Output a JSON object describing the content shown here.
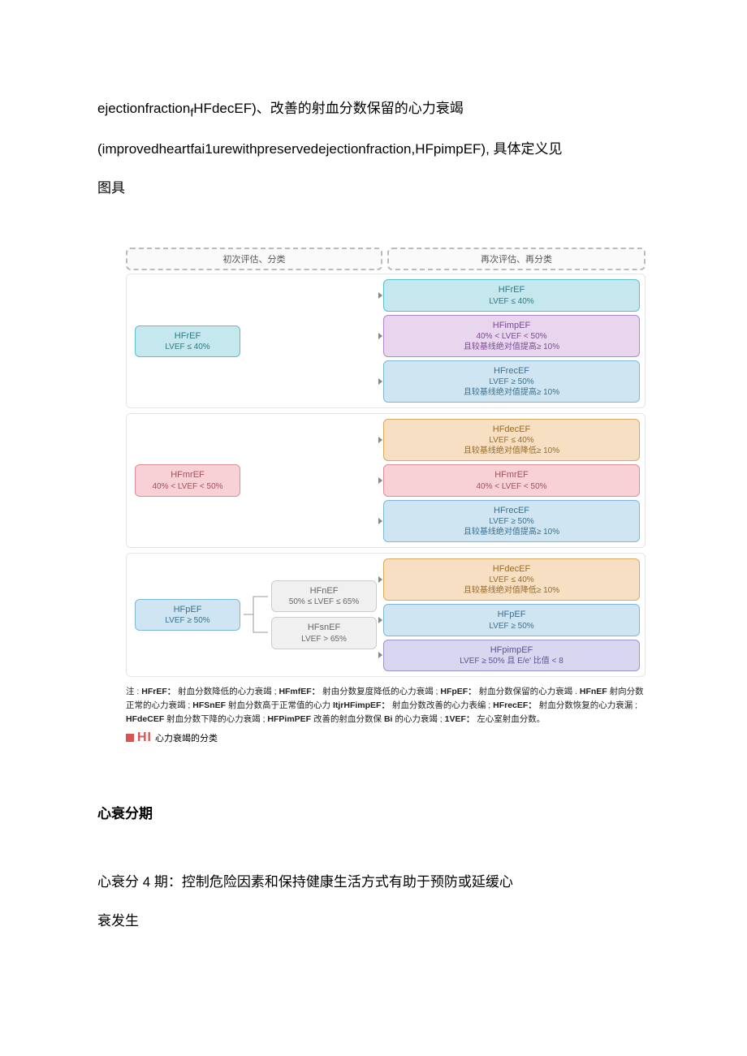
{
  "intro": {
    "line1_a": "ejectionfraction",
    "line1_sub": "f",
    "line1_b": "HFdecEF)、改善的射血分数保留的心力衰竭",
    "line2": "(improvedheartfai1urewithpreservedejectionfraction,HFpimpEF), 具体定义见",
    "line3": "图具"
  },
  "headers": {
    "left": "初次评估、分类",
    "right": "再次评估、再分类"
  },
  "colors": {
    "teal": {
      "bg": "#c4e8ee",
      "border": "#5bbfc9",
      "text": "#2a7a85"
    },
    "purple": {
      "bg": "#e8d6ef",
      "border": "#b884cb",
      "text": "#7b4a91"
    },
    "blue": {
      "bg": "#cfe6f2",
      "border": "#7fb7d6",
      "text": "#3a6f8f"
    },
    "orange": {
      "bg": "#f6dfc2",
      "border": "#d9a95f",
      "text": "#9a6a28"
    },
    "pink": {
      "bg": "#f7d1d6",
      "border": "#df8e97",
      "text": "#a44f5a"
    },
    "grey": {
      "bg": "#f0f0f0",
      "border": "#cccccc",
      "text": "#666666"
    },
    "violet": {
      "bg": "#d9d6ef",
      "border": "#9b94cf",
      "text": "#5a5393"
    }
  },
  "groups": [
    {
      "source": {
        "title": "HFrEF",
        "sub": "LVEF ≤ 40%",
        "color": "teal"
      },
      "mids": [],
      "right": [
        {
          "title": "HFrEF",
          "sub": "LVEF ≤ 40%",
          "color": "teal"
        },
        {
          "title": "HFimpEF",
          "sub": "40% < LVEF < 50%\n且较基线绝对值提高≥ 10%",
          "color": "purple"
        },
        {
          "title": "HFrecEF",
          "sub": "LVEF ≥ 50%\n且较基线绝对值提高≥ 10%",
          "color": "blue"
        }
      ]
    },
    {
      "source": {
        "title": "HFmrEF",
        "sub": "40% < LVEF < 50%",
        "color": "pink"
      },
      "mids": [],
      "right": [
        {
          "title": "HFdecEF",
          "sub": "LVEF ≤ 40%\n且较基线绝对值降低≥ 10%",
          "color": "orange"
        },
        {
          "title": "HFmrEF",
          "sub": "40% < LVEF < 50%",
          "color": "pink"
        },
        {
          "title": "HFrecEF",
          "sub": "LVEF ≥ 50%\n且较基线绝对值提高≥ 10%",
          "color": "blue"
        }
      ]
    },
    {
      "source": {
        "title": "HFpEF",
        "sub": "LVEF ≥ 50%",
        "color": "blue"
      },
      "mids": [
        {
          "title": "HFnEF",
          "sub": "50% ≤ LVEF ≤ 65%",
          "color": "grey"
        },
        {
          "title": "HFsnEF",
          "sub": "LVEF > 65%",
          "color": "grey"
        }
      ],
      "right": [
        {
          "title": "HFdecEF",
          "sub": "LVEF ≤ 40%\n且较基线绝对值降低≥ 10%",
          "color": "orange"
        },
        {
          "title": "HFpEF",
          "sub": "LVEF ≥ 50%",
          "color": "blue"
        },
        {
          "title": "HFpimpEF",
          "sub": "LVEF ≥ 50% 且 E/e' 比值 < 8",
          "color": "violet"
        }
      ]
    }
  ],
  "footnote": {
    "prefix": "注 : ",
    "items": [
      {
        "k": "HFrEF：",
        "v": " 射血分数降低的心力衰竭 ; "
      },
      {
        "k": "HFmfEF：",
        "v": " 射由分数复度降低的心力衰竭 ; "
      },
      {
        "k": "HFpEF：",
        "v": " 射血分数保留的心力衰竭 . "
      },
      {
        "k": "HFnEF",
        "v": " 射向分数正常的心力衰竭 ; "
      },
      {
        "k": "HFSnEF",
        "v": " 射血分数高于正常值的心力 "
      },
      {
        "k": "ItjrHFimpEF：",
        "v": " 射血分数改善的心力表编 ; "
      },
      {
        "k": "HFrecEF：",
        "v": " 射血分数恢复的心力衰漏 ; "
      },
      {
        "k": "HFdeCEF",
        "v": " 射血分数下降的心力衰竭 ; "
      },
      {
        "k": "HFPimPEF",
        "v": " 改善的射血分数保 "
      },
      {
        "k": "Bi",
        "v": " 的心力衰竭 ; "
      },
      {
        "k": "1VEF：",
        "v": " 左心室射血分数。"
      }
    ]
  },
  "figLabel": {
    "tag": "HI",
    "caption": "心力衰竭的分类"
  },
  "section": {
    "heading": "心衰分期"
  },
  "bodyPara": {
    "line1": "心衰分 4 期：控制危险因素和保持健康生活方式有助于预防或延缓心",
    "line2": "衰发生"
  }
}
